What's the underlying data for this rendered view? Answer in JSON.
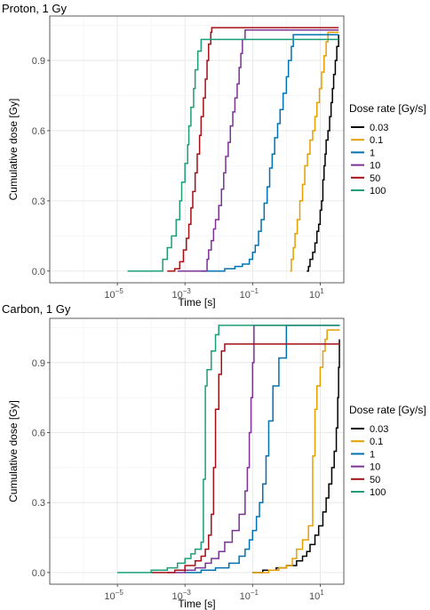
{
  "panels": [
    {
      "title": "Proton, 1 Gy",
      "xlabel": "Time [s]",
      "ylabel": "Cumulative dose [Gy]",
      "legend_title": "Dose rate [Gy/s]"
    },
    {
      "title": "Carbon, 1 Gy",
      "xlabel": "Time [s]",
      "ylabel": "Cumulative dose [Gy]",
      "legend_title": "Dose rate [Gy/s]"
    }
  ],
  "chart_data": [
    {
      "type": "line",
      "title": "Proton, 1 Gy",
      "xlabel": "Time [s]",
      "ylabel": "Cumulative dose [Gy]",
      "x_scale": "log10",
      "xlim": [
        1e-07,
        50
      ],
      "ylim": [
        -0.05,
        1.09
      ],
      "x_ticks": [
        {
          "value": 1e-05,
          "base": "10",
          "exp": "−5"
        },
        {
          "value": 0.001,
          "base": "10",
          "exp": "−3"
        },
        {
          "value": 0.1,
          "base": "10",
          "exp": "−1"
        },
        {
          "value": 10,
          "base": "10",
          "exp": "1"
        }
      ],
      "y_ticks": [
        {
          "value": 0,
          "label": "0.0"
        },
        {
          "value": 0.3,
          "label": "0.3"
        },
        {
          "value": 0.6,
          "label": "0.6"
        },
        {
          "value": 0.9,
          "label": "0.9"
        }
      ],
      "grid": true,
      "legend_position": "right",
      "legend_title": "Dose rate [Gy/s]",
      "series": [
        {
          "name": "0.03",
          "color": "#000000",
          "points": [
            [
              4,
              0
            ],
            [
              4.5,
              0.02
            ],
            [
              5,
              0.05
            ],
            [
              6,
              0.08
            ],
            [
              7,
              0.12
            ],
            [
              8,
              0.17
            ],
            [
              9,
              0.2
            ],
            [
              10,
              0.26
            ],
            [
              11,
              0.3
            ],
            [
              12,
              0.39
            ],
            [
              13,
              0.45
            ],
            [
              14,
              0.5
            ],
            [
              15,
              0.56
            ],
            [
              17,
              0.6
            ],
            [
              19,
              0.66
            ],
            [
              21,
              0.72
            ],
            [
              23,
              0.78
            ],
            [
              25,
              0.84
            ],
            [
              28,
              0.9
            ],
            [
              31,
              0.96
            ],
            [
              35,
              1.01
            ]
          ]
        },
        {
          "name": "0.1",
          "color": "#E69F00",
          "points": [
            [
              1.3,
              0
            ],
            [
              1.4,
              0.05
            ],
            [
              1.6,
              0.1
            ],
            [
              1.8,
              0.16
            ],
            [
              2.1,
              0.22
            ],
            [
              2.5,
              0.3
            ],
            [
              3,
              0.37
            ],
            [
              3.5,
              0.45
            ],
            [
              4.2,
              0.5
            ],
            [
              5,
              0.56
            ],
            [
              6,
              0.6
            ],
            [
              7,
              0.66
            ],
            [
              8,
              0.72
            ],
            [
              9.5,
              0.78
            ],
            [
              11,
              0.85
            ],
            [
              13,
              0.92
            ],
            [
              15,
              0.98
            ],
            [
              17,
              1.02
            ],
            [
              35,
              1.02
            ]
          ]
        },
        {
          "name": "1",
          "color": "#0072B2",
          "points": [
            [
              0.003,
              0
            ],
            [
              0.008,
              0
            ],
            [
              0.015,
              0.01
            ],
            [
              0.03,
              0.02
            ],
            [
              0.05,
              0.03
            ],
            [
              0.08,
              0.05
            ],
            [
              0.1,
              0.08
            ],
            [
              0.12,
              0.11
            ],
            [
              0.15,
              0.17
            ],
            [
              0.18,
              0.22
            ],
            [
              0.22,
              0.29
            ],
            [
              0.27,
              0.36
            ],
            [
              0.32,
              0.44
            ],
            [
              0.38,
              0.5
            ],
            [
              0.45,
              0.57
            ],
            [
              0.55,
              0.63
            ],
            [
              0.65,
              0.69
            ],
            [
              0.8,
              0.76
            ],
            [
              1,
              0.83
            ],
            [
              1.15,
              0.9
            ],
            [
              1.4,
              0.96
            ],
            [
              1.6,
              1.01
            ],
            [
              35,
              1.01
            ]
          ]
        },
        {
          "name": "10",
          "color": "#7B3294",
          "points": [
            [
              0.0006,
              0
            ],
            [
              0.004,
              0
            ],
            [
              0.0045,
              0.05
            ],
            [
              0.005,
              0.09
            ],
            [
              0.006,
              0.13
            ],
            [
              0.007,
              0.18
            ],
            [
              0.008,
              0.22
            ],
            [
              0.01,
              0.28
            ],
            [
              0.012,
              0.35
            ],
            [
              0.014,
              0.42
            ],
            [
              0.016,
              0.49
            ],
            [
              0.019,
              0.55
            ],
            [
              0.022,
              0.62
            ],
            [
              0.026,
              0.68
            ],
            [
              0.03,
              0.74
            ],
            [
              0.035,
              0.8
            ],
            [
              0.04,
              0.87
            ],
            [
              0.045,
              0.93
            ],
            [
              0.05,
              0.99
            ],
            [
              0.06,
              1.03
            ],
            [
              35,
              1.03
            ]
          ]
        },
        {
          "name": "50",
          "color": "#A50F15",
          "points": [
            [
              0.0003,
              0
            ],
            [
              0.0005,
              0.01
            ],
            [
              0.0007,
              0.04
            ],
            [
              0.0009,
              0.09
            ],
            [
              0.0011,
              0.14
            ],
            [
              0.0013,
              0.2
            ],
            [
              0.0015,
              0.27
            ],
            [
              0.0017,
              0.34
            ],
            [
              0.002,
              0.42
            ],
            [
              0.0023,
              0.5
            ],
            [
              0.0027,
              0.58
            ],
            [
              0.003,
              0.66
            ],
            [
              0.0035,
              0.74
            ],
            [
              0.004,
              0.82
            ],
            [
              0.0045,
              0.9
            ],
            [
              0.005,
              0.97
            ],
            [
              0.0058,
              1.02
            ],
            [
              0.0062,
              1.04
            ],
            [
              35,
              1.04
            ]
          ]
        },
        {
          "name": "100",
          "color": "#1B9E77",
          "points": [
            [
              2e-05,
              0
            ],
            [
              0.0002,
              0
            ],
            [
              0.00022,
              0.05
            ],
            [
              0.0003,
              0.1
            ],
            [
              0.0004,
              0.15
            ],
            [
              0.00055,
              0.22
            ],
            [
              0.0007,
              0.3
            ],
            [
              0.0008,
              0.38
            ],
            [
              0.001,
              0.46
            ],
            [
              0.0012,
              0.54
            ],
            [
              0.0013,
              0.62
            ],
            [
              0.0015,
              0.7
            ],
            [
              0.0018,
              0.78
            ],
            [
              0.002,
              0.86
            ],
            [
              0.0024,
              0.94
            ],
            [
              0.003,
              0.99
            ],
            [
              35,
              0.99
            ]
          ]
        }
      ]
    },
    {
      "type": "line",
      "title": "Carbon, 1 Gy",
      "xlabel": "Time [s]",
      "ylabel": "Cumulative dose [Gy]",
      "x_scale": "log10",
      "xlim": [
        1e-07,
        50
      ],
      "ylim": [
        -0.05,
        1.09
      ],
      "x_ticks": [
        {
          "value": 1e-05,
          "base": "10",
          "exp": "−5"
        },
        {
          "value": 0.001,
          "base": "10",
          "exp": "−3"
        },
        {
          "value": 0.1,
          "base": "10",
          "exp": "−1"
        },
        {
          "value": 10,
          "base": "10",
          "exp": "1"
        }
      ],
      "y_ticks": [
        {
          "value": 0,
          "label": "0.0"
        },
        {
          "value": 0.3,
          "label": "0.3"
        },
        {
          "value": 0.6,
          "label": "0.6"
        },
        {
          "value": 0.9,
          "label": "0.9"
        }
      ],
      "grid": true,
      "legend_position": "right",
      "legend_title": "Dose rate [Gy/s]",
      "series": [
        {
          "name": "0.03",
          "color": "#000000",
          "points": [
            [
              0.1,
              0
            ],
            [
              0.2,
              0.01
            ],
            [
              0.5,
              0.02
            ],
            [
              1,
              0.03
            ],
            [
              2,
              0.05
            ],
            [
              3,
              0.07
            ],
            [
              4,
              0.09
            ],
            [
              5,
              0.12
            ],
            [
              7,
              0.16
            ],
            [
              9,
              0.2
            ],
            [
              12,
              0.26
            ],
            [
              15,
              0.32
            ],
            [
              18,
              0.38
            ],
            [
              22,
              0.45
            ],
            [
              26,
              0.52
            ],
            [
              30,
              0.62
            ],
            [
              33,
              0.75
            ],
            [
              35,
              0.88
            ],
            [
              37,
              1.0
            ]
          ]
        },
        {
          "name": "0.1",
          "color": "#E69F00",
          "points": [
            [
              0.1,
              0
            ],
            [
              0.3,
              0.01
            ],
            [
              0.6,
              0.02
            ],
            [
              1,
              0.03
            ],
            [
              1.5,
              0.06
            ],
            [
              2,
              0.1
            ],
            [
              3,
              0.14
            ],
            [
              4.5,
              0.2
            ],
            [
              6,
              0.5
            ],
            [
              7,
              0.7
            ],
            [
              8,
              0.8
            ],
            [
              10,
              0.88
            ],
            [
              12,
              0.95
            ],
            [
              14,
              1.0
            ],
            [
              16,
              1.04
            ],
            [
              38,
              1.04
            ]
          ]
        },
        {
          "name": "1",
          "color": "#0072B2",
          "points": [
            [
              0.001,
              0
            ],
            [
              0.003,
              0.01
            ],
            [
              0.008,
              0.02
            ],
            [
              0.02,
              0.04
            ],
            [
              0.04,
              0.07
            ],
            [
              0.06,
              0.1
            ],
            [
              0.08,
              0.14
            ],
            [
              0.1,
              0.18
            ],
            [
              0.13,
              0.24
            ],
            [
              0.16,
              0.3
            ],
            [
              0.2,
              0.38
            ],
            [
              0.25,
              0.5
            ],
            [
              0.3,
              0.65
            ],
            [
              0.4,
              0.8
            ],
            [
              0.6,
              0.92
            ],
            [
              1,
              1.06
            ],
            [
              38,
              1.06
            ]
          ]
        },
        {
          "name": "10",
          "color": "#7B3294",
          "points": [
            [
              0.0003,
              0
            ],
            [
              0.001,
              0.01
            ],
            [
              0.002,
              0.02
            ],
            [
              0.004,
              0.04
            ],
            [
              0.006,
              0.06
            ],
            [
              0.01,
              0.09
            ],
            [
              0.015,
              0.13
            ],
            [
              0.025,
              0.18
            ],
            [
              0.04,
              0.25
            ],
            [
              0.06,
              0.35
            ],
            [
              0.07,
              0.45
            ],
            [
              0.08,
              0.6
            ],
            [
              0.09,
              0.75
            ],
            [
              0.1,
              0.9
            ],
            [
              0.11,
              1.06
            ],
            [
              38,
              1.06
            ]
          ]
        },
        {
          "name": "50",
          "color": "#A50F15",
          "points": [
            [
              0.0001,
              0
            ],
            [
              0.0005,
              0.01
            ],
            [
              0.001,
              0.03
            ],
            [
              0.002,
              0.05
            ],
            [
              0.003,
              0.07
            ],
            [
              0.004,
              0.1
            ],
            [
              0.005,
              0.16
            ],
            [
              0.006,
              0.25
            ],
            [
              0.007,
              0.45
            ],
            [
              0.008,
              0.7
            ],
            [
              0.01,
              0.85
            ],
            [
              0.012,
              0.95
            ],
            [
              0.015,
              0.98
            ],
            [
              38,
              0.98
            ]
          ]
        },
        {
          "name": "100",
          "color": "#1B9E77",
          "points": [
            [
              1e-05,
              0
            ],
            [
              0.0001,
              0.01
            ],
            [
              0.0003,
              0.02
            ],
            [
              0.0006,
              0.04
            ],
            [
              0.001,
              0.06
            ],
            [
              0.0015,
              0.08
            ],
            [
              0.002,
              0.1
            ],
            [
              0.003,
              0.13
            ],
            [
              0.0035,
              0.4
            ],
            [
              0.004,
              0.8
            ],
            [
              0.0045,
              0.87
            ],
            [
              0.006,
              0.95
            ],
            [
              0.008,
              1.02
            ],
            [
              0.01,
              1.06
            ],
            [
              38,
              1.06
            ]
          ]
        }
      ]
    }
  ]
}
